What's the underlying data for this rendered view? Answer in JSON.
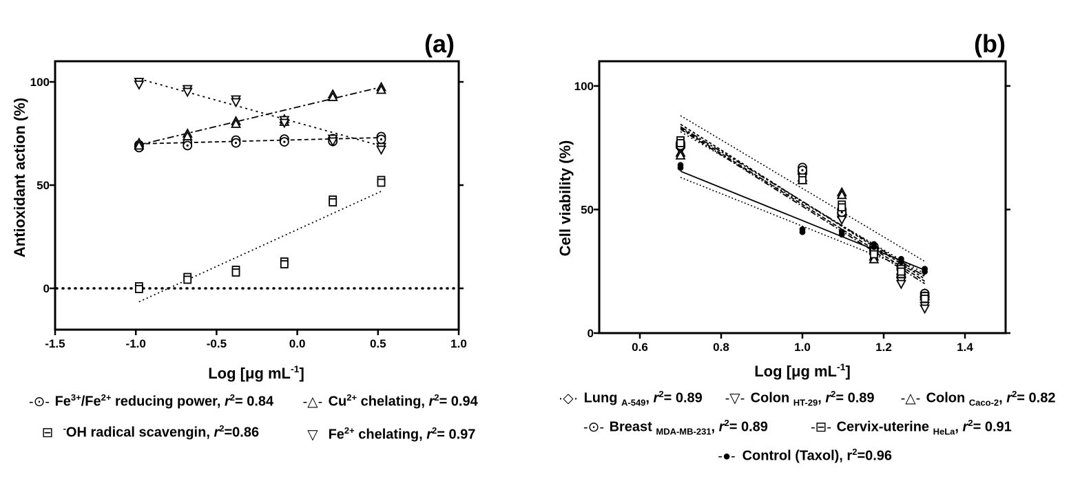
{
  "panels": [
    {
      "id": "a",
      "label": "(a)",
      "ylabel": "Antioxidant action (%)",
      "xlabel_main": "Log [",
      "xlabel_mu": "μg mL",
      "xlabel_sup": "-1",
      "xlabel_end": "]",
      "xticks": [
        "-1.5",
        "-1.0",
        "-0.5",
        "0.0",
        "0.5",
        "1.0"
      ],
      "yticks": [
        "0",
        "50",
        "100"
      ]
    },
    {
      "id": "b",
      "label": "(b)",
      "ylabel": "Cell viability (%)",
      "xlabel_main": "Log [",
      "xlabel_mu": "μg mL",
      "xlabel_sup": "-1",
      "xlabel_end": "]",
      "xticks": [
        "0.6",
        "0.8",
        "1.0",
        "1.2",
        "1.4"
      ],
      "yticks": [
        "0",
        "50",
        "100"
      ]
    }
  ],
  "chart_data": [
    {
      "type": "scatter",
      "title": "(a)",
      "xlabel": "Log [μg mL-1]",
      "ylabel": "Antioxidant action (%)",
      "xlim": [
        -1.5,
        1.0
      ],
      "ylim": [
        -20,
        110
      ],
      "reference_line_y": 0,
      "series": [
        {
          "name": "Fe3+/Fe2+ reducing power",
          "marker": "circle-dot",
          "r2": "0.84",
          "x": [
            -0.98,
            -0.68,
            -0.38,
            -0.08,
            0.22,
            0.52
          ],
          "y": [
            69.5,
            70.5,
            71.8,
            72.3,
            72.5,
            73.5
          ],
          "fit": [
            [
              -0.98,
              70.0
            ],
            [
              0.52,
              73.0
            ]
          ]
        },
        {
          "name": "Cu2+ chelating",
          "marker": "triangle-up",
          "r2": "0.94",
          "x": [
            -0.98,
            -0.68,
            -0.38,
            -0.08,
            0.22,
            0.52
          ],
          "y": [
            70.5,
            75.0,
            81.0,
            82.0,
            94.0,
            97.5
          ],
          "fit": [
            [
              -0.98,
              69.5
            ],
            [
              0.52,
              97.5
            ]
          ]
        },
        {
          "name": "OH radical scavengin",
          "marker": "square",
          "r2": "0.86",
          "x": [
            -0.98,
            -0.68,
            -0.38,
            -0.08,
            0.22,
            0.52
          ],
          "y": [
            1.0,
            5.5,
            9.0,
            13.0,
            43.0,
            52.5
          ],
          "fit": [
            [
              -0.98,
              -6.5
            ],
            [
              0.52,
              47.0
            ]
          ]
        },
        {
          "name": "Fe2+ chelating",
          "marker": "triangle-down",
          "r2": "0.97",
          "x": [
            -0.98,
            -0.68,
            -0.38,
            -0.08,
            0.22,
            0.52
          ],
          "y": [
            100.0,
            96.5,
            91.5,
            81.5,
            72.5,
            68.5
          ],
          "fit": [
            [
              -0.98,
              101.5
            ],
            [
              0.52,
              69.0
            ]
          ]
        }
      ]
    },
    {
      "type": "scatter",
      "title": "(b)",
      "xlabel": "Log [μg mL-1]",
      "ylabel": "Cell viability (%)",
      "xlim": [
        0.5,
        1.5
      ],
      "ylim": [
        0,
        110
      ],
      "series": [
        {
          "name": "Lung A-549",
          "marker": "diamond",
          "r2": "0.89",
          "x": [
            0.7,
            1.0,
            1.097,
            1.176,
            1.243,
            1.301
          ],
          "y": [
            76,
            66,
            48,
            33,
            24,
            15
          ],
          "fit": [
            [
              0.7,
              84.5
            ],
            [
              1.301,
              22.0
            ]
          ]
        },
        {
          "name": "Colon HT-29",
          "marker": "triangle-down",
          "r2": "0.89",
          "x": [
            0.7,
            1.0,
            1.097,
            1.176,
            1.243,
            1.301
          ],
          "y": [
            75,
            64,
            47,
            32,
            21,
            11
          ],
          "fit": [
            [
              0.7,
              82.5
            ],
            [
              1.301,
              20.0
            ]
          ]
        },
        {
          "name": "Colon Caco-2",
          "marker": "triangle-up",
          "r2": "0.82",
          "x": [
            0.7,
            1.0,
            1.097,
            1.176,
            1.243,
            1.301
          ],
          "y": [
            73,
            63,
            57,
            31,
            25,
            16
          ],
          "fit": [
            [
              0.7,
              81.5
            ],
            [
              1.301,
              24.0
            ]
          ]
        },
        {
          "name": "Breast MDA-MB-231",
          "marker": "circle-dot",
          "r2": "0.89",
          "x": [
            0.7,
            1.0,
            1.097,
            1.176,
            1.243,
            1.301
          ],
          "y": [
            77,
            67,
            50,
            35,
            27,
            16
          ],
          "fit": [
            [
              0.7,
              83.5
            ],
            [
              1.301,
              23.0
            ]
          ]
        },
        {
          "name": "Cervix-uterine HeLa",
          "marker": "square",
          "r2": "0.91",
          "x": [
            0.7,
            1.0,
            1.097,
            1.176,
            1.243,
            1.301
          ],
          "y": [
            78,
            63,
            52,
            33,
            26,
            15
          ],
          "fit": [
            [
              0.7,
              83.0
            ],
            [
              1.301,
              21.0
            ]
          ]
        },
        {
          "name": "Control (Taxol)",
          "marker": "filled-circle",
          "r2": "0.96",
          "x": [
            0.7,
            1.0,
            1.097,
            1.176,
            1.243,
            1.301
          ],
          "y": [
            68,
            42,
            41,
            36,
            30,
            26
          ],
          "fit": [
            [
              0.7,
              65.5
            ],
            [
              1.301,
              25.5
            ]
          ]
        }
      ],
      "confidence_band": {
        "upper": [
          [
            0.7,
            88.0
          ],
          [
            1.301,
            29.0
          ]
        ],
        "lower": [
          [
            0.7,
            63.0
          ],
          [
            1.301,
            23.5
          ]
        ]
      }
    }
  ],
  "legend_a": [
    {
      "sym": "-⊙-",
      "pre": "Fe",
      "sup1": "3+",
      "mid": "/Fe",
      "sup2": "2+",
      "post": " reducing power, ",
      "r": "r",
      "rsup": "2",
      "val": "= 0.84"
    },
    {
      "sym": "-△-",
      "pre": "Cu",
      "sup1": "2+",
      "mid": "",
      "sup2": "",
      "post": " chelating, ",
      "r": "r",
      "rsup": "2",
      "val": "= 0.94"
    },
    {
      "sym": "⊟",
      "pre": "",
      "sup1": "-",
      "mid": "OH radical scavengin, ",
      "sup2": "",
      "post": "",
      "r": "r",
      "rsup": "2",
      "val": "=0.86"
    },
    {
      "sym": "▽",
      "pre": "Fe",
      "sup1": "2+",
      "mid": "",
      "sup2": "",
      "post": " chelating, ",
      "r": "r",
      "rsup": "2",
      "val": "= 0.97"
    }
  ],
  "legend_b": [
    {
      "sym": "·◇·",
      "name": "Lung ",
      "sub": "A-549",
      "post": ", ",
      "r": "r",
      "rsup": "2",
      "val": "= 0.89"
    },
    {
      "sym": "-▽-",
      "name": "Colon ",
      "sub": "HT-29",
      "post": ", ",
      "r": "r",
      "rsup": "2",
      "val": "= 0.89"
    },
    {
      "sym": "-△-",
      "name": "Colon ",
      "sub": "Caco-2",
      "post": ", ",
      "r": "r",
      "rsup": "2",
      "val": "= 0.82"
    },
    {
      "sym": "-⊙-",
      "name": "Breast ",
      "sub": "MDA-MB-231",
      "post": ", ",
      "r": "r",
      "rsup": "2",
      "val": "= 0.89"
    },
    {
      "sym": "-⊟-",
      "name": "Cervix-uterine ",
      "sub": "HeLa",
      "post": ", ",
      "r": "r",
      "rsup": "2",
      "val": "= 0.91"
    },
    {
      "sym": "-●-",
      "name": "Control (Taxol), ",
      "sub": "",
      "post": "",
      "r": "r",
      "rsup": "2",
      "val": "=0.96"
    }
  ]
}
